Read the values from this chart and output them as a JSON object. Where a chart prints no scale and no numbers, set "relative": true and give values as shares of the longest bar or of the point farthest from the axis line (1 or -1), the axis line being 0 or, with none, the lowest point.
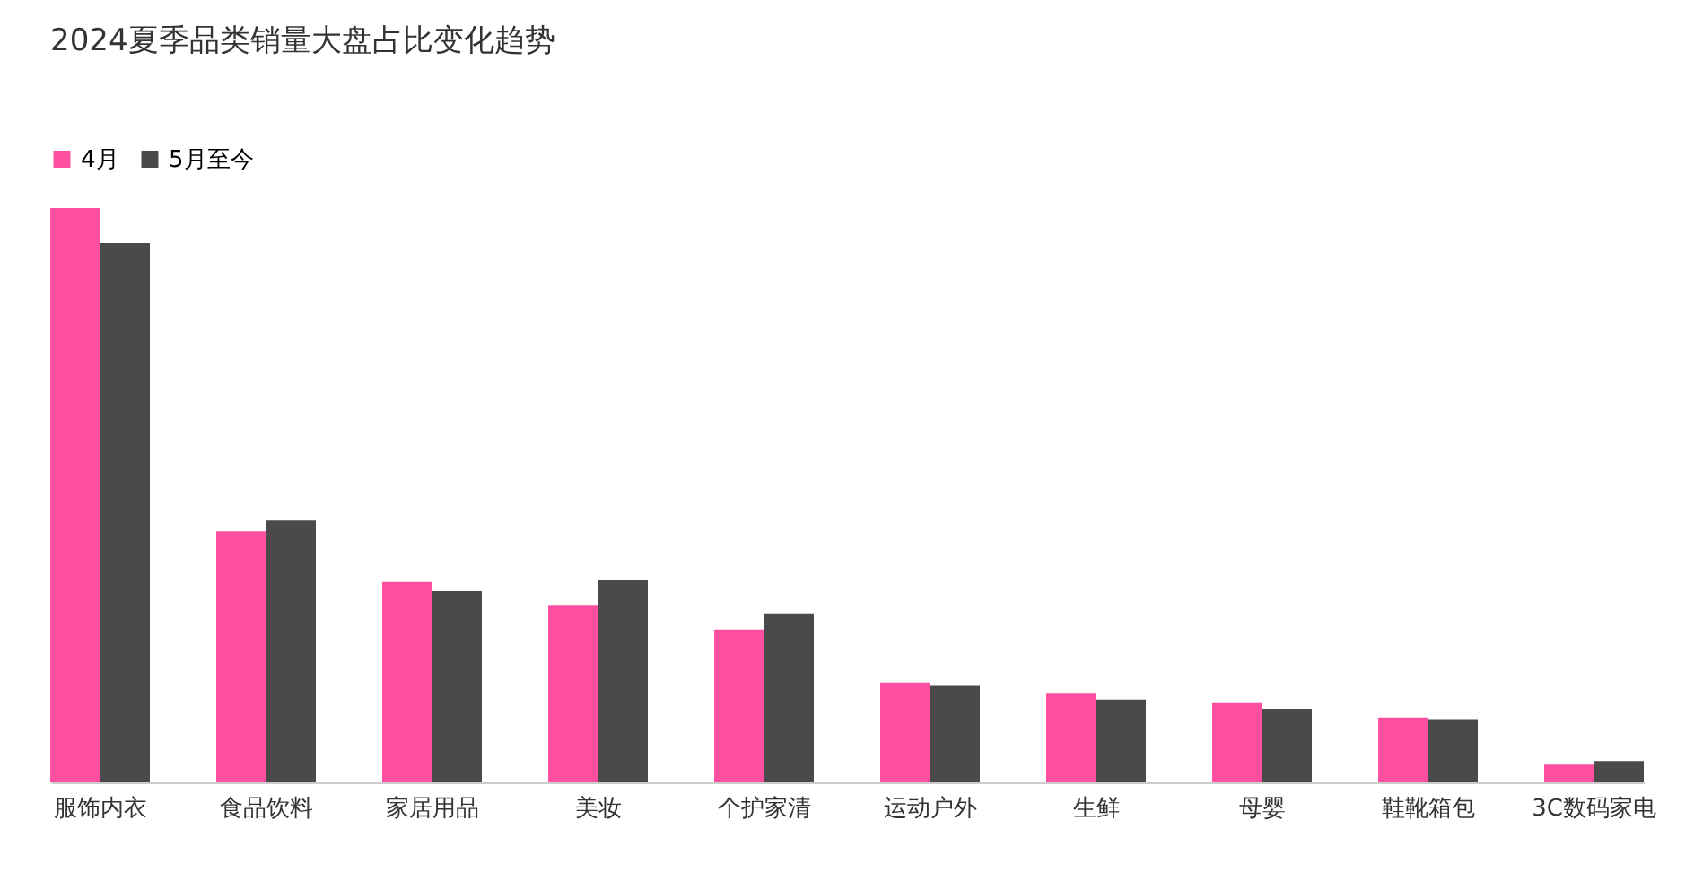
{
  "chart_data": {
    "type": "bar",
    "title": "2024夏季品类销量大盘占比变化趋势",
    "relative": true,
    "legend": "top left",
    "categories": [
      "服饰内衣",
      "食品饮料",
      "家居用品",
      "美妆",
      "个护家清",
      "运动户外",
      "生鲜",
      "母婴",
      "鞋靴箱包",
      "3C数码家电"
    ],
    "series": [
      {
        "name": "4月",
        "color": "#ff4fa0",
        "values": [
          1,
          0.437,
          0.349,
          0.309,
          0.266,
          0.174,
          0.156,
          0.138,
          0.113,
          0.031
        ]
      },
      {
        "name": "5月至今",
        "color": "#4a4a4a",
        "values": [
          0.939,
          0.456,
          0.333,
          0.352,
          0.294,
          0.168,
          0.144,
          0.128,
          0.11,
          0.037
        ]
      }
    ]
  }
}
